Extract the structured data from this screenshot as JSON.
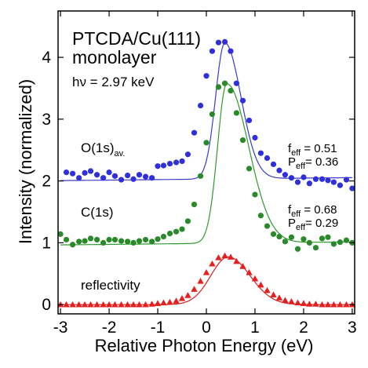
{
  "chart_data": {
    "type": "scatter",
    "title_lines": [
      "PTCDA/Cu(111)",
      "monolayer"
    ],
    "energy_label": "hν = 2.97 keV",
    "xlabel": "Relative Photon Energy (eV)",
    "ylabel": "Intensity (normalized)",
    "xlim": [
      -3.05,
      3.05
    ],
    "ylim": [
      -0.15,
      4.75
    ],
    "xticks": [
      -3,
      -2,
      -1,
      0,
      1,
      2,
      3
    ],
    "xtick_labels": [
      "-3",
      "-2",
      "-1",
      "0",
      "1",
      "2",
      "3"
    ],
    "yticks": [
      0,
      1,
      2,
      3,
      4
    ],
    "ytick_labels": [
      "0",
      "1",
      "2",
      "3",
      "4"
    ],
    "grid": false,
    "series": [
      {
        "name": "O(1s)",
        "name_sub": "av.",
        "color": "#2f2fdb",
        "marker": "circle",
        "fit_color": "#3b3bcc",
        "fit": {
          "baseline": 2.03,
          "slope": 0.008,
          "amplitude": 2.2,
          "center": 0.38,
          "sigma_left": 0.19,
          "sigma_right": 0.33
        },
        "params": {
          "f_label": "f",
          "f_sub": "eff",
          "f_value": " = 0.51",
          "p_label": "P",
          "p_sub": "eff",
          "p_value": "= 0.36"
        },
        "x": [
          -2.88,
          -2.75,
          -2.62,
          -2.5,
          -2.38,
          -2.25,
          -2.12,
          -2.0,
          -1.88,
          -1.75,
          -1.62,
          -1.5,
          -1.38,
          -1.25,
          -1.12,
          -1.0,
          -0.88,
          -0.75,
          -0.62,
          -0.5,
          -0.38,
          -0.25,
          -0.12,
          0.0,
          0.12,
          0.25,
          0.38,
          0.5,
          0.62,
          0.75,
          0.88,
          1.0,
          1.12,
          1.25,
          1.38,
          1.5,
          1.62,
          1.75,
          1.88,
          2.0,
          2.12,
          2.25,
          2.38,
          2.5,
          2.62,
          2.75,
          2.88,
          3.0
        ],
        "y": [
          2.14,
          2.12,
          2.05,
          2.13,
          2.16,
          2.1,
          2.05,
          2.14,
          2.08,
          2.02,
          2.09,
          2.03,
          2.1,
          2.07,
          2.05,
          2.24,
          2.25,
          2.28,
          2.3,
          2.32,
          2.43,
          2.78,
          3.22,
          3.7,
          4.1,
          4.24,
          4.25,
          4.1,
          3.58,
          3.3,
          2.98,
          2.7,
          2.45,
          2.37,
          2.27,
          2.17,
          2.1,
          2.05,
          1.98,
          2.06,
          1.96,
          2.03,
          2.03,
          2.01,
          1.98,
          1.93,
          2.02,
          1.88
        ]
      },
      {
        "name": "C(1s)",
        "name_sub": "",
        "color": "#2a8a2a",
        "marker": "circle",
        "fit_color": "#2f9a2f",
        "fit": {
          "baseline": 0.99,
          "slope": 0.008,
          "amplitude": 2.58,
          "center": 0.42,
          "sigma_left": 0.19,
          "sigma_right": 0.45
        },
        "params": {
          "f_label": "f",
          "f_sub": "eff",
          "f_value": " = 0.68",
          "p_label": "P",
          "p_sub": "eff",
          "p_value": "= 0.29"
        },
        "x": [
          -3.0,
          -2.88,
          -2.75,
          -2.62,
          -2.5,
          -2.38,
          -2.25,
          -2.12,
          -2.0,
          -1.88,
          -1.75,
          -1.62,
          -1.5,
          -1.38,
          -1.25,
          -1.12,
          -1.0,
          -0.88,
          -0.75,
          -0.62,
          -0.5,
          -0.38,
          -0.25,
          -0.12,
          0.0,
          0.12,
          0.25,
          0.38,
          0.5,
          0.62,
          0.75,
          0.88,
          1.0,
          1.12,
          1.25,
          1.38,
          1.5,
          1.62,
          1.75,
          1.88,
          2.0,
          2.12,
          2.25,
          2.38,
          2.5,
          2.62,
          2.75,
          2.88,
          3.0
        ],
        "y": [
          1.14,
          1.05,
          0.97,
          1.02,
          1.03,
          1.07,
          1.05,
          1.0,
          1.05,
          1.05,
          1.03,
          1.02,
          1.0,
          1.03,
          1.05,
          1.02,
          1.06,
          1.1,
          1.15,
          1.18,
          1.22,
          1.35,
          1.62,
          2.08,
          2.62,
          3.08,
          3.52,
          3.58,
          3.46,
          3.1,
          2.66,
          2.2,
          1.78,
          1.44,
          1.27,
          1.14,
          1.1,
          1.02,
          1.09,
          0.9,
          1.06,
          1.0,
          0.92,
          1.07,
          1.09,
          0.98,
          1.01,
          1.04,
          1.0
        ]
      },
      {
        "name": "reflectivity",
        "name_sub": "",
        "color": "#e61e1e",
        "marker": "triangle",
        "fit_color": "#d42020",
        "fit": {
          "baseline": 0.0,
          "slope": 0.0,
          "amplitude": 0.77,
          "center": 0.45,
          "sigma_left": 0.36,
          "sigma_right": 0.45
        },
        "params": null,
        "x": [
          -3.0,
          -2.88,
          -2.75,
          -2.62,
          -2.5,
          -2.38,
          -2.25,
          -2.12,
          -2.0,
          -1.88,
          -1.75,
          -1.62,
          -1.5,
          -1.38,
          -1.25,
          -1.12,
          -1.0,
          -0.88,
          -0.75,
          -0.62,
          -0.5,
          -0.38,
          -0.25,
          -0.12,
          0.0,
          0.12,
          0.25,
          0.38,
          0.5,
          0.62,
          0.75,
          0.88,
          1.0,
          1.12,
          1.25,
          1.38,
          1.5,
          1.62,
          1.75,
          1.88,
          2.0,
          2.12,
          2.25,
          2.38,
          2.5,
          2.62,
          2.75,
          2.88,
          3.0
        ],
        "y": [
          0.0,
          0.0,
          0.0,
          0.0,
          0.0,
          0.0,
          0.0,
          0.0,
          0.0,
          0.0,
          0.0,
          0.0,
          0.0,
          0.0,
          0.0,
          0.01,
          0.02,
          0.03,
          0.04,
          0.06,
          0.1,
          0.15,
          0.25,
          0.38,
          0.52,
          0.66,
          0.76,
          0.79,
          0.77,
          0.7,
          0.62,
          0.52,
          0.42,
          0.32,
          0.23,
          0.16,
          0.11,
          0.07,
          0.05,
          0.03,
          0.02,
          0.01,
          0.01,
          0.0,
          0.0,
          0.0,
          0.0,
          0.0,
          0.0
        ]
      }
    ]
  }
}
